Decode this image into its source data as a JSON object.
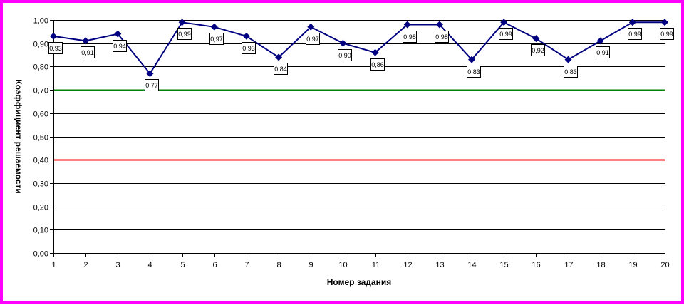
{
  "chart_data": {
    "type": "line",
    "title": "",
    "xlabel": "Номер задания",
    "ylabel": "Коэффициент решаемости",
    "x": [
      1,
      2,
      3,
      4,
      5,
      6,
      7,
      8,
      9,
      10,
      11,
      12,
      13,
      14,
      15,
      16,
      17,
      18,
      19,
      20
    ],
    "x_tick_labels": [
      "1",
      "2",
      "3",
      "4",
      "5",
      "6",
      "7",
      "8",
      "9",
      "10",
      "11",
      "12",
      "13",
      "14",
      "15",
      "16",
      "17",
      "18",
      "19",
      "20"
    ],
    "y_tick_labels": [
      "0,00",
      "0,10",
      "0,20",
      "0,30",
      "0,40",
      "0,50",
      "0,60",
      "0,70",
      "0,80",
      "0,90",
      "1,00"
    ],
    "ylim": [
      0,
      1
    ],
    "y_step": 0.1,
    "grid": true,
    "legend": "none",
    "series": [
      {
        "values": [
          0.93,
          0.91,
          0.94,
          0.77,
          0.99,
          0.97,
          0.93,
          0.84,
          0.97,
          0.9,
          0.86,
          0.98,
          0.98,
          0.83,
          0.99,
          0.92,
          0.83,
          0.91,
          0.99,
          0.99
        ],
        "labels": [
          "0,93",
          "0,91",
          "0,94",
          "0,77",
          "0,99",
          "0,97",
          "0,93",
          "0,84",
          "0,97",
          "0,90",
          "0,86",
          "0,98",
          "0,98",
          "0,83",
          "0,99",
          "0,92",
          "0,83",
          "0,91",
          "0,99",
          "0,99"
        ],
        "color": "#000080"
      }
    ],
    "reference_lines": [
      {
        "value": 0.7,
        "color": "#008000"
      },
      {
        "value": 0.4,
        "color": "#ff0000"
      }
    ],
    "frame_color": "#ff00ff"
  }
}
